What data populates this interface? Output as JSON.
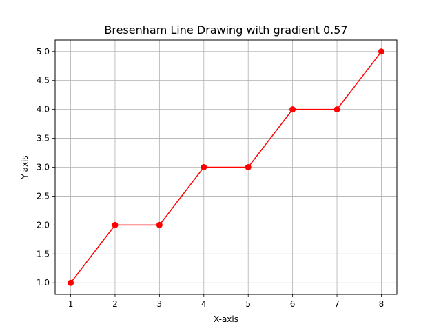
{
  "chart_data": {
    "type": "line",
    "title": "Bresenham Line Drawing with gradient 0.57",
    "xlabel": "X-axis",
    "ylabel": "Y-axis",
    "x": [
      1,
      2,
      3,
      4,
      5,
      6,
      7,
      8
    ],
    "series": [
      {
        "values": [
          1,
          2,
          2,
          3,
          3,
          4,
          4,
          5
        ],
        "color": "#ff0000",
        "marker": "circle"
      }
    ],
    "xlim": [
      0.65,
      8.35
    ],
    "ylim": [
      0.8,
      5.2
    ],
    "xticks": [
      1,
      2,
      3,
      4,
      5,
      6,
      7,
      8
    ],
    "xtick_labels": [
      "1",
      "2",
      "3",
      "4",
      "5",
      "6",
      "7",
      "8"
    ],
    "yticks": [
      1.0,
      1.5,
      2.0,
      2.5,
      3.0,
      3.5,
      4.0,
      4.5,
      5.0
    ],
    "ytick_labels": [
      "1.0",
      "1.5",
      "2.0",
      "2.5",
      "3.0",
      "3.5",
      "4.0",
      "4.5",
      "5.0"
    ],
    "grid": true,
    "grid_color": "#b0b0b0",
    "line_color": "#ff0000"
  }
}
